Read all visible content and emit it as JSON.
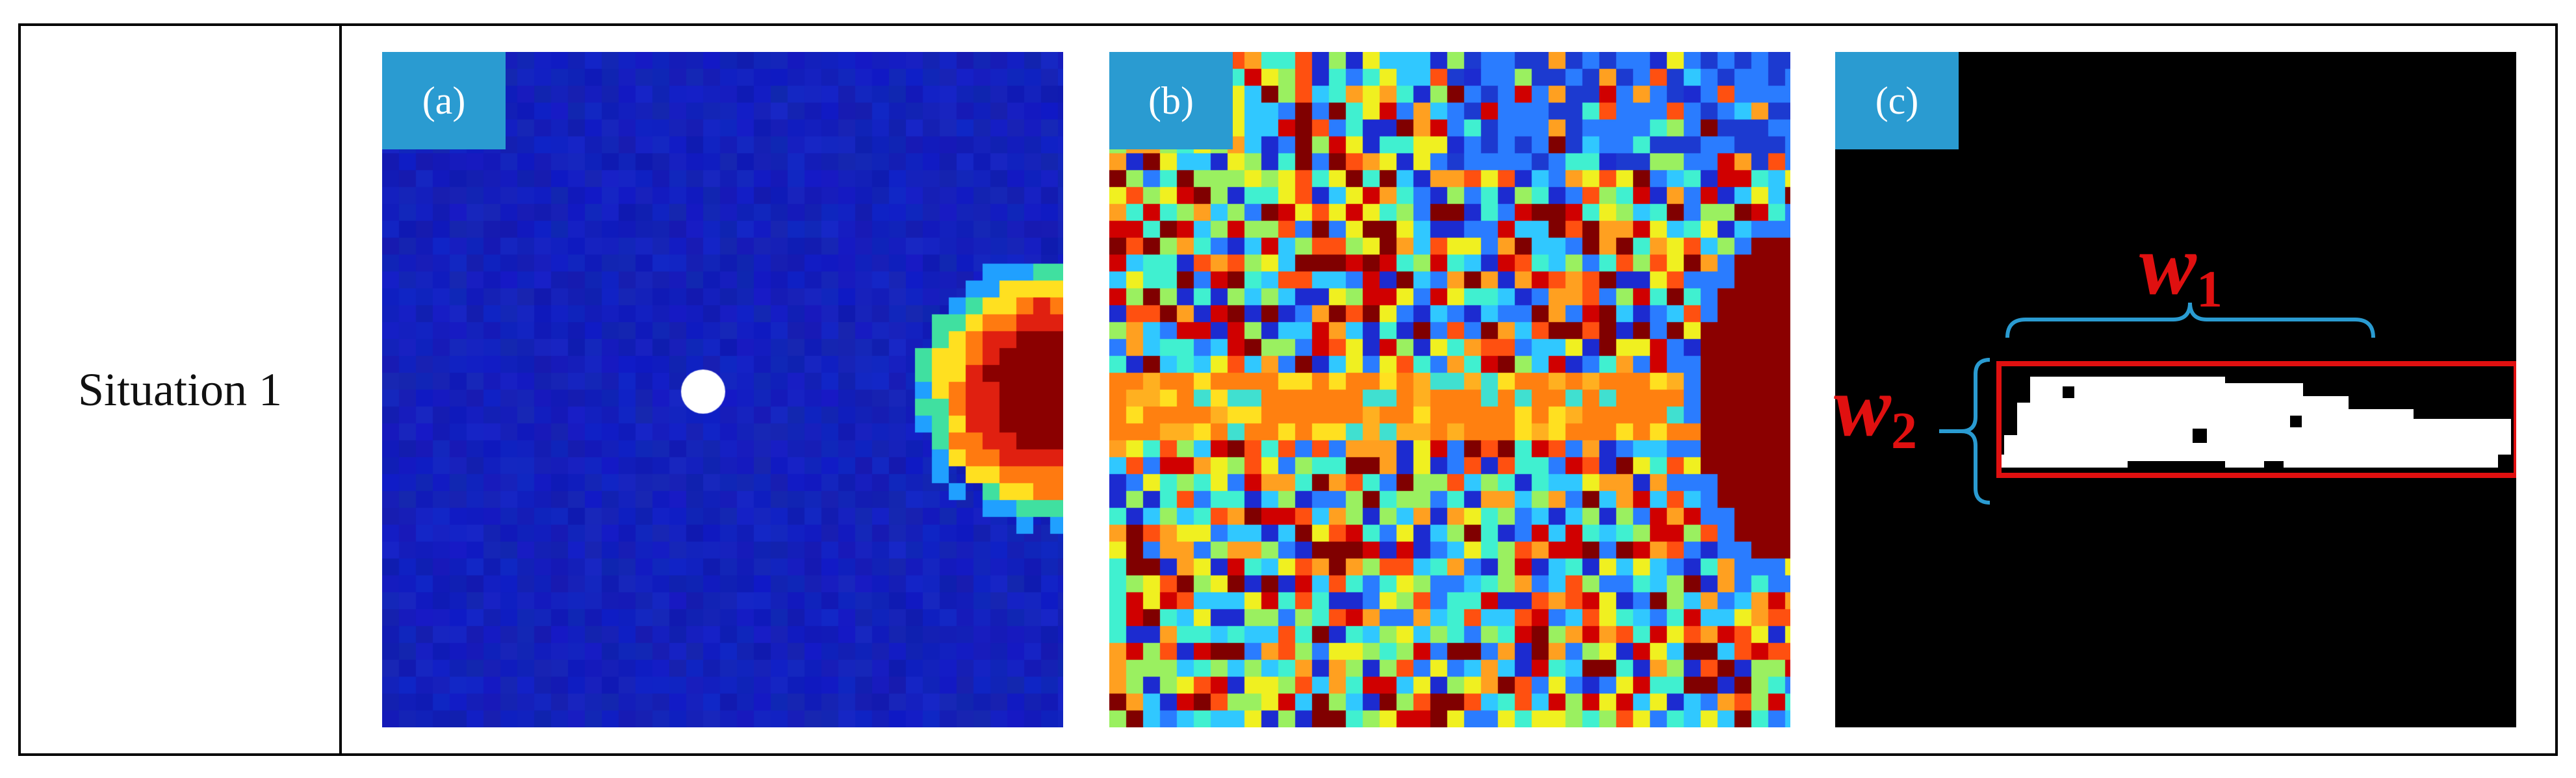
{
  "row_label": "Situation 1",
  "panels": [
    {
      "tag": "(a)",
      "content": "velocity field, blue background with hot-coloured region at right edge and white circle"
    },
    {
      "tag": "(b)",
      "content": "noisy multicolour pixel field with horizontal orange band and dark red region at right"
    },
    {
      "tag": "(c)",
      "content": "binary mask, black background with white region inside red bounding box, blue braces"
    }
  ],
  "annotations": {
    "w1": {
      "symbol": "w",
      "subscript": "1"
    },
    "w2": {
      "symbol": "w",
      "subscript": "2"
    }
  },
  "colors": {
    "tag_bg": "#2a9bd1",
    "panel_a_bg": "#1420b8",
    "highlight_red": "#e01010",
    "brace_blue": "#2a9bd1"
  }
}
